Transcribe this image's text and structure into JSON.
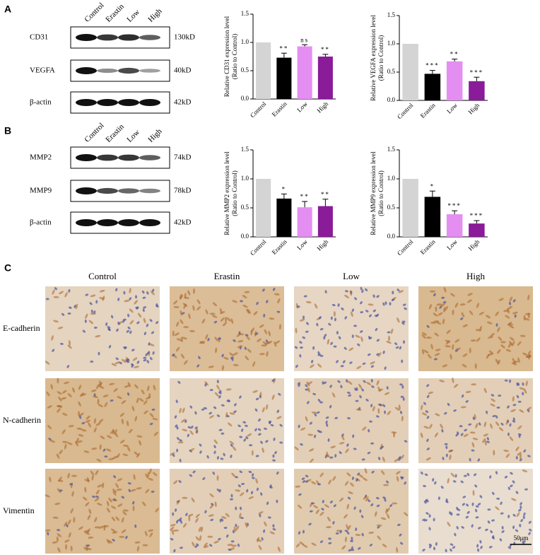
{
  "panel_labels": [
    "A",
    "B",
    "C"
  ],
  "blots": [
    {
      "lanes": [
        "Control",
        "Erastin",
        "Low",
        "High"
      ],
      "rows": [
        {
          "name": "CD31",
          "size": "130kD"
        },
        {
          "name": "VEGFA",
          "size": "40kD"
        },
        {
          "name": "β-actin",
          "size": "42kD"
        }
      ]
    },
    {
      "lanes": [
        "Control",
        "Erastin",
        "Low",
        "High"
      ],
      "rows": [
        {
          "name": "MMP2",
          "size": "74kD"
        },
        {
          "name": "MMP9",
          "size": "78kD"
        },
        {
          "name": "β-actin",
          "size": "42kD"
        }
      ]
    }
  ],
  "chart_data": [
    {
      "type": "bar",
      "ylabel": [
        "Relative CD31 expression level",
        "(Ratio to Control)"
      ],
      "categories": [
        "Control",
        "Erastin",
        "Low",
        "High"
      ],
      "values": [
        1.0,
        0.73,
        0.93,
        0.75
      ],
      "errors": [
        null,
        0.08,
        0.03,
        0.04
      ],
      "significance": [
        null,
        "**",
        "ns",
        "**"
      ],
      "colors": [
        "#d4d4d4",
        "#000000",
        "#e48ef2",
        "#8a1b99"
      ],
      "ylim": [
        0,
        1.5
      ],
      "yticks": [
        {
          "value": 0,
          "label": "0.0"
        },
        {
          "value": 0.5,
          "label": "0.5"
        },
        {
          "value": 1,
          "label": "1.0"
        },
        {
          "value": 1.5,
          "label": "1.5"
        }
      ]
    },
    {
      "type": "bar",
      "ylabel": [
        "Relative VEGFA expression level",
        "(Ratio to Control)"
      ],
      "categories": [
        "Control",
        "Erastin",
        "Low",
        "High"
      ],
      "values": [
        1.0,
        0.47,
        0.69,
        0.34
      ],
      "errors": [
        null,
        0.06,
        0.04,
        0.07
      ],
      "significance": [
        null,
        "***",
        "**",
        "***"
      ],
      "colors": [
        "#d4d4d4",
        "#000000",
        "#e48ef2",
        "#8a1b99"
      ],
      "ylim": [
        0,
        1.5
      ],
      "yticks": [
        {
          "value": 0,
          "label": "0.0"
        },
        {
          "value": 0.5,
          "label": "0.5"
        },
        {
          "value": 1,
          "label": "1.0"
        },
        {
          "value": 1.5,
          "label": "1.5"
        }
      ]
    },
    {
      "type": "bar",
      "ylabel": [
        "Relative MMP2 expression level",
        "(Ratio to Control)"
      ],
      "categories": [
        "Control",
        "Erastin",
        "Low",
        "High"
      ],
      "values": [
        1.0,
        0.66,
        0.51,
        0.53
      ],
      "errors": [
        null,
        0.08,
        0.1,
        0.12
      ],
      "significance": [
        null,
        "*",
        "**",
        "**"
      ],
      "colors": [
        "#d4d4d4",
        "#000000",
        "#e48ef2",
        "#8a1b99"
      ],
      "ylim": [
        0,
        1.5
      ],
      "yticks": [
        {
          "value": 0,
          "label": "0.0"
        },
        {
          "value": 0.5,
          "label": "0.5"
        },
        {
          "value": 1,
          "label": "1.0"
        },
        {
          "value": 1.5,
          "label": "1.5"
        }
      ]
    },
    {
      "type": "bar",
      "ylabel": [
        "Relative MMP9 expression level",
        "(Ratio to Control)"
      ],
      "categories": [
        "Control",
        "Erastin",
        "Low",
        "High"
      ],
      "values": [
        1.0,
        0.69,
        0.39,
        0.23
      ],
      "errors": [
        null,
        0.1,
        0.06,
        0.05
      ],
      "significance": [
        null,
        "*",
        "***",
        "***"
      ],
      "colors": [
        "#d4d4d4",
        "#000000",
        "#e48ef2",
        "#8a1b99"
      ],
      "ylim": [
        0,
        1.5
      ],
      "yticks": [
        {
          "value": 0,
          "label": "0.0"
        },
        {
          "value": 0.5,
          "label": "0.5"
        },
        {
          "value": 1,
          "label": "1.0"
        },
        {
          "value": 1.5,
          "label": "1.5"
        }
      ]
    }
  ],
  "ihc": {
    "columns": [
      "Control",
      "Erastin",
      "Low",
      "High"
    ],
    "rows": [
      "E-cadherin",
      "N-cadherin",
      "Vimentin"
    ],
    "scale_bar": "50μm"
  }
}
